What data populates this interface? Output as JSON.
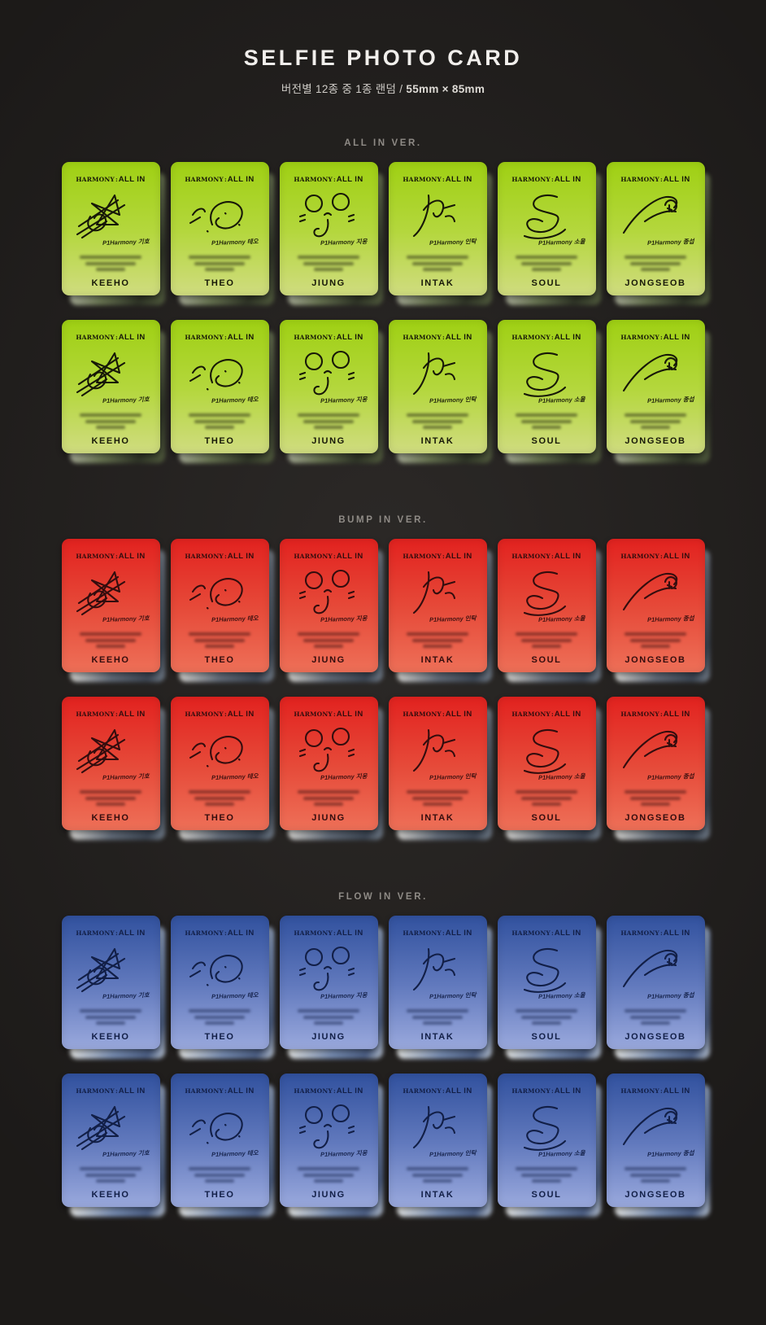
{
  "header": {
    "title": "SELFIE PHOTO CARD",
    "subtitle_info": "버전별 12종 중 1종 랜덤 /",
    "subtitle_size": "55mm × 85mm"
  },
  "brand": {
    "wordmark_left": "HARMONY",
    "wordmark_sep": ":",
    "wordmark_right": "ALL IN"
  },
  "members": [
    {
      "name": "KEEHO",
      "caption": "P1Harmony 기호",
      "signature_icon": "signature-keeho"
    },
    {
      "name": "THEO",
      "caption": "P1Harmony 테오",
      "signature_icon": "signature-theo"
    },
    {
      "name": "JIUNG",
      "caption": "P1Harmony 지웅",
      "signature_icon": "signature-jiung"
    },
    {
      "name": "INTAK",
      "caption": "P1Harmony 인탁",
      "signature_icon": "signature-intak"
    },
    {
      "name": "SOUL",
      "caption": "P1Harmony 소울",
      "signature_icon": "signature-soul"
    },
    {
      "name": "JONGSEOB",
      "caption": "P1Harmony 종섭",
      "signature_icon": "signature-jongseob"
    }
  ],
  "sections": [
    {
      "label": "ALL IN VER.",
      "version_id": "allin",
      "rows": 2,
      "card_colors": [
        "#9fd013",
        "#b4d73d",
        "#d0dc80"
      ],
      "ink_color": "#171808"
    },
    {
      "label": "BUMP IN VER.",
      "version_id": "bump",
      "rows": 2,
      "card_colors": [
        "#e2221f",
        "#e64a39",
        "#ee7058"
      ],
      "ink_color": "#330d0e"
    },
    {
      "label": "FLOW IN VER.",
      "version_id": "flow",
      "rows": 2,
      "card_colors": [
        "#31519e",
        "#6179bd",
        "#9aa9dd"
      ],
      "ink_color": "#121f47"
    }
  ],
  "page_background": "#282523"
}
